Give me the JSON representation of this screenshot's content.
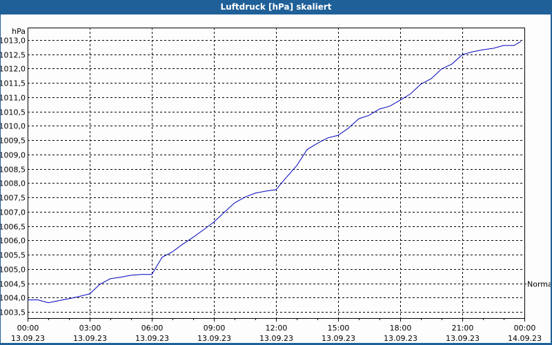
{
  "window": {
    "title": "Luftdruck [hPa] skaliert"
  },
  "colors": {
    "titlebar": "#1f6098",
    "background": "#fcfdfc",
    "line": "#0000c0",
    "grid": "#000000"
  },
  "chart_data": {
    "type": "line",
    "title": "Luftdruck [hPa] skaliert",
    "xlabel": "",
    "ylabel": "hPa",
    "ylim": [
      1003.5,
      1013.0
    ],
    "yticks": [
      "1013,0",
      "1012,5",
      "1012,0",
      "1011,5",
      "1011,0",
      "1010,5",
      "1010,0",
      "1009,5",
      "1009,0",
      "1008,5",
      "1008,0",
      "1007,5",
      "1007,0",
      "1006,5",
      "1006,0",
      "1005,5",
      "1005,0",
      "1004,5",
      "1004,0",
      "1003,5"
    ],
    "xticks": [
      {
        "time": "00:00",
        "date": "13.09.23"
      },
      {
        "time": "03:00",
        "date": "13.09.23"
      },
      {
        "time": "06:00",
        "date": "13.09.23"
      },
      {
        "time": "09:00",
        "date": "13.09.23"
      },
      {
        "time": "12:00",
        "date": "13.09.23"
      },
      {
        "time": "15:00",
        "date": "13.09.23"
      },
      {
        "time": "18:00",
        "date": "13.09.23"
      },
      {
        "time": "21:00",
        "date": "13.09.23"
      },
      {
        "time": "00:00",
        "date": "14.09.23"
      }
    ],
    "grid": true,
    "annotations": [
      {
        "label": "Normal",
        "y": 1004.5
      }
    ],
    "series": [
      {
        "name": "Luftdruck",
        "x_hours": [
          0,
          0.5,
          1,
          1.5,
          2,
          2.5,
          3,
          3.5,
          4,
          4.5,
          5,
          5.5,
          6,
          6.5,
          7,
          7.5,
          8,
          8.5,
          9,
          9.5,
          10,
          10.5,
          11,
          11.5,
          12,
          12.5,
          13,
          13.5,
          14,
          14.5,
          15,
          15.5,
          16,
          16.5,
          17,
          17.5,
          18,
          18.5,
          19,
          19.5,
          20,
          20.5,
          21,
          21.5,
          22,
          22.5,
          23,
          23.5,
          23.83
        ],
        "values": [
          1003.92,
          1003.92,
          1003.82,
          1003.89,
          1003.96,
          1004.04,
          1004.13,
          1004.47,
          1004.66,
          1004.71,
          1004.78,
          1004.81,
          1004.81,
          1005.41,
          1005.6,
          1005.87,
          1006.11,
          1006.37,
          1006.64,
          1006.98,
          1007.31,
          1007.51,
          1007.65,
          1007.72,
          1007.77,
          1008.2,
          1008.61,
          1009.17,
          1009.39,
          1009.58,
          1009.67,
          1009.92,
          1010.25,
          1010.37,
          1010.59,
          1010.69,
          1010.9,
          1011.12,
          1011.46,
          1011.65,
          1011.99,
          1012.16,
          1012.49,
          1012.59,
          1012.66,
          1012.71,
          1012.81,
          1012.81,
          1012.95
        ]
      }
    ]
  }
}
